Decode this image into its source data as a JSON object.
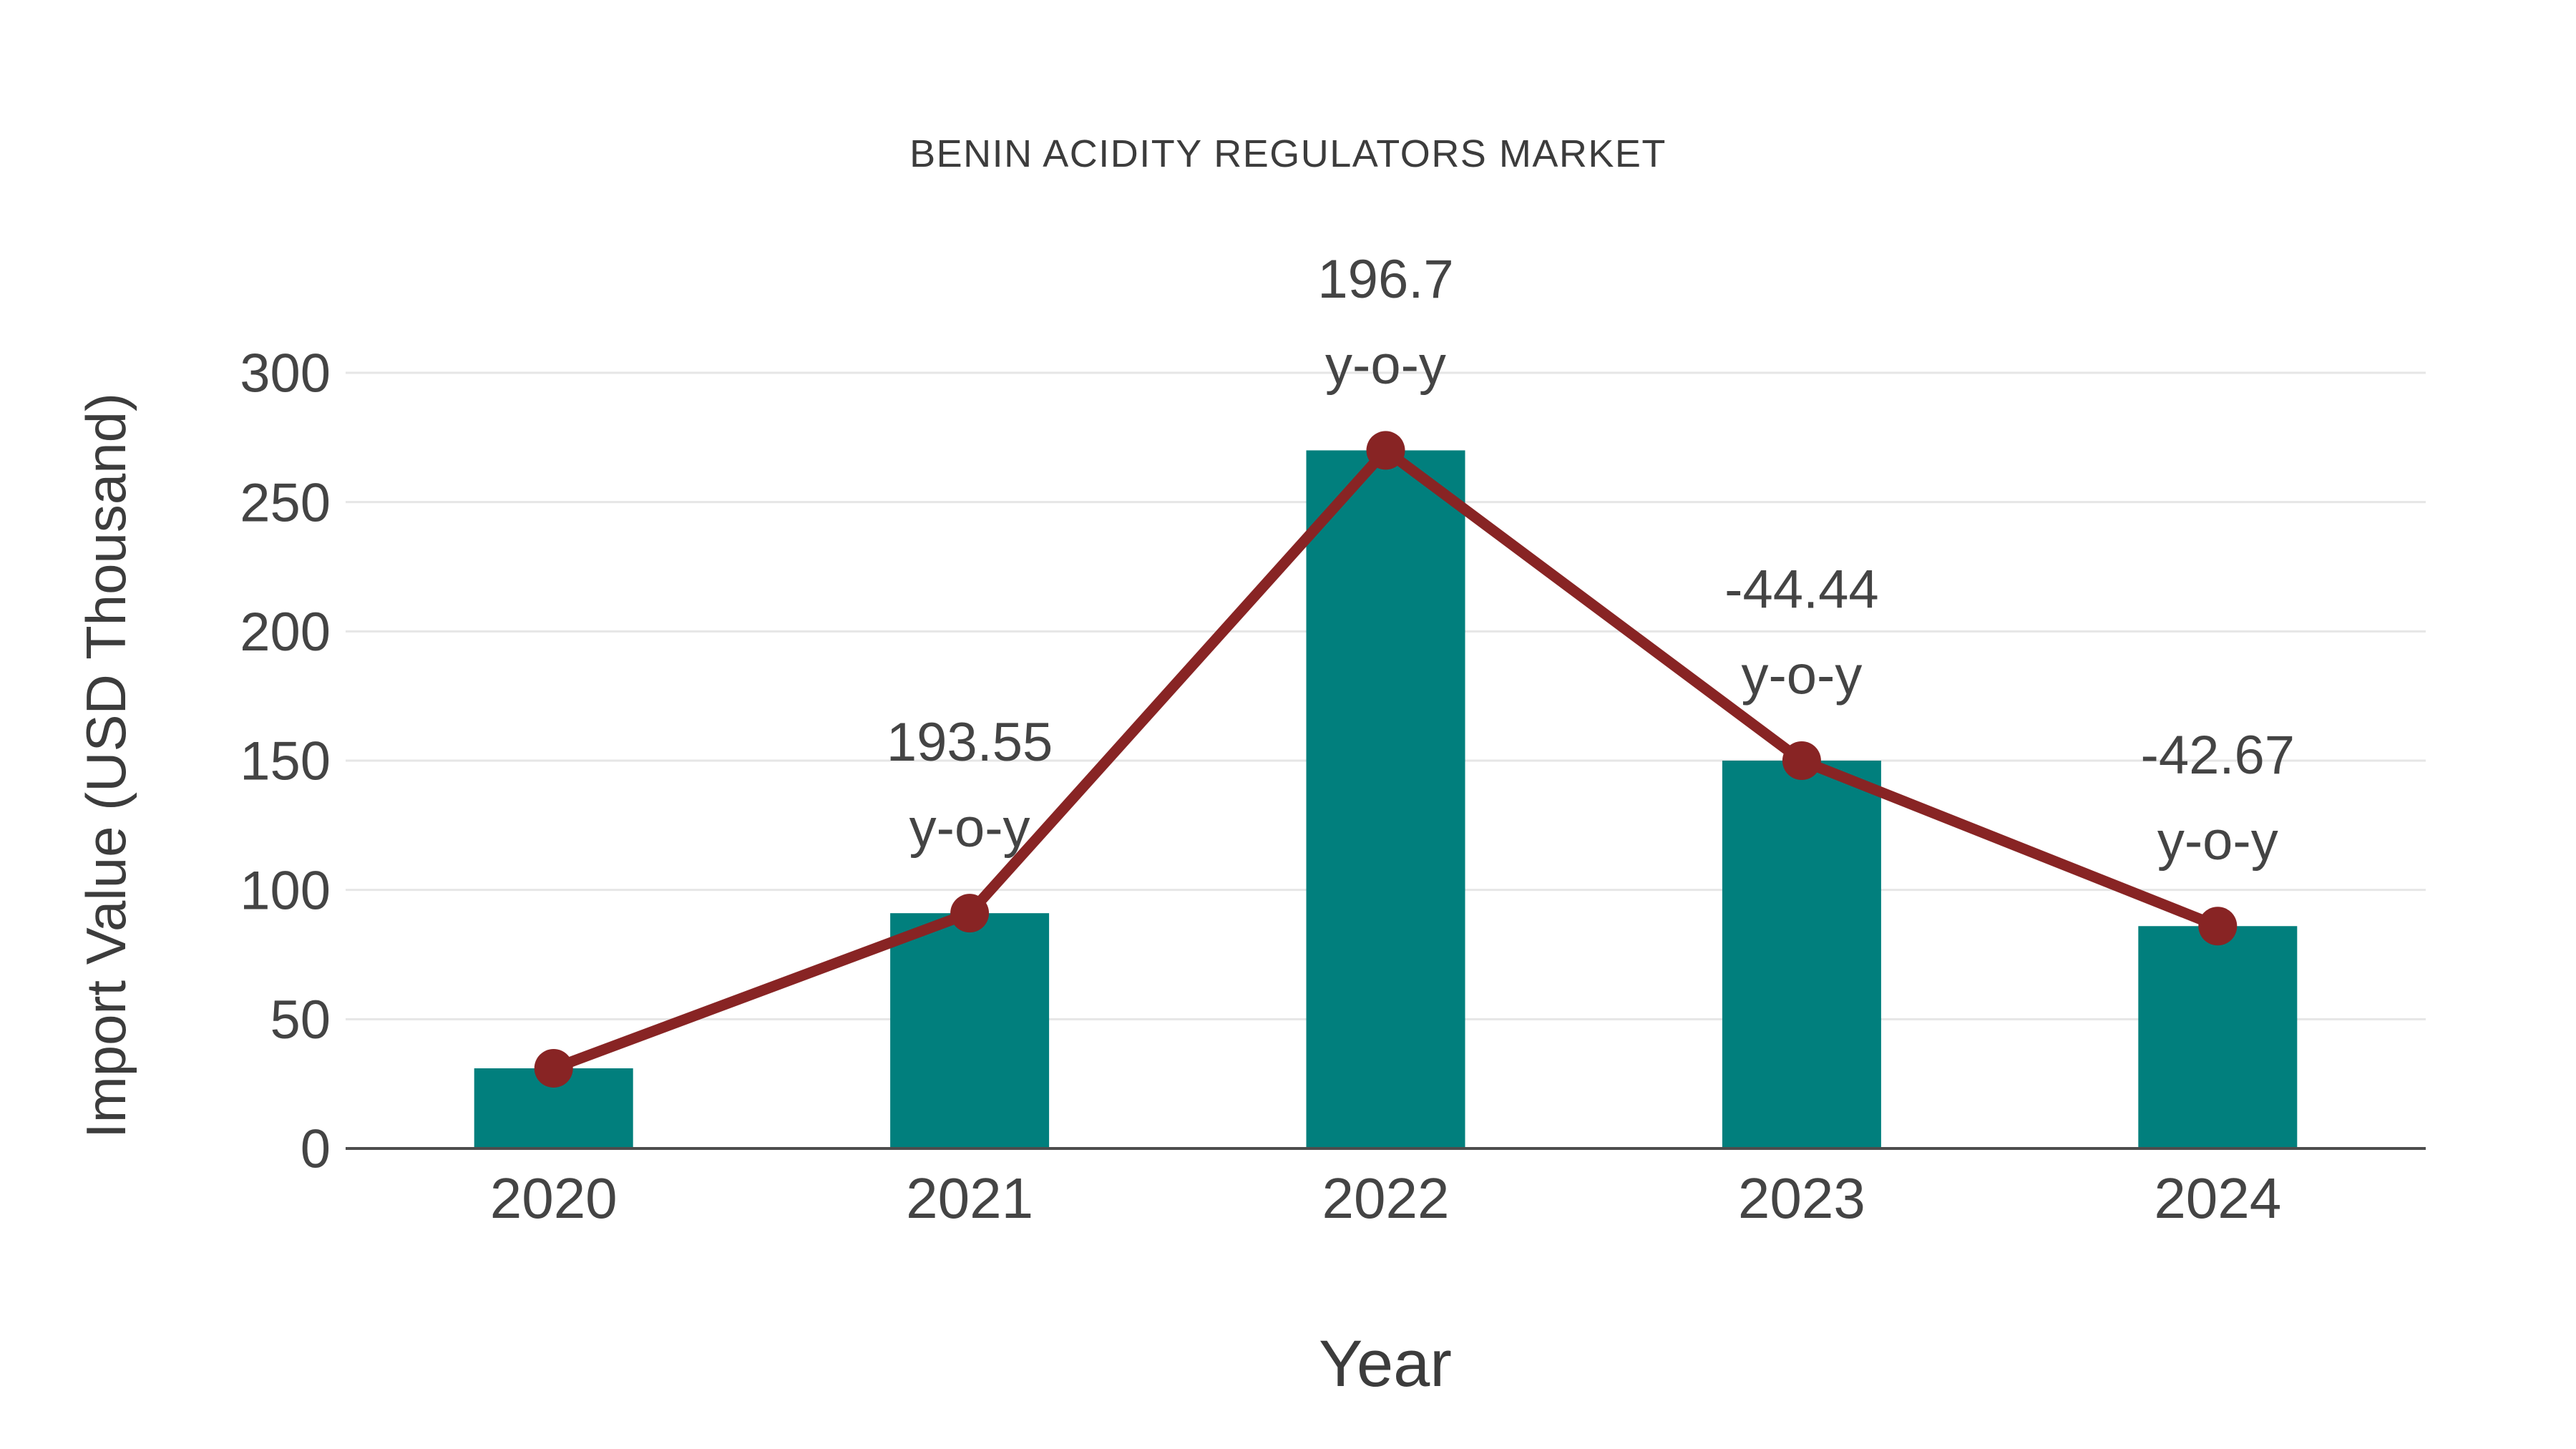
{
  "title": "BENIN ACIDITY REGULATORS MARKET",
  "chart_data": {
    "type": "bar+line",
    "title": "BENIN ACIDITY REGULATORS MARKET",
    "categories": [
      "2020",
      "2021",
      "2022",
      "2023",
      "2024"
    ],
    "series": [
      {
        "name": "Import Value",
        "type": "bar",
        "values": [
          31,
          91,
          270,
          150,
          86
        ],
        "color": "#017f7d"
      },
      {
        "name": "y-o-y change line",
        "type": "line",
        "values": [
          31,
          91,
          270,
          150,
          86
        ],
        "yoy_percent": [
          null,
          193.55,
          196.7,
          -44.44,
          -42.67
        ],
        "color": "#882424",
        "marker": true
      }
    ],
    "annotations": [
      {
        "year": "2021",
        "line1": "193.55",
        "line2": "y-o-y"
      },
      {
        "year": "2022",
        "line1": "196.7",
        "line2": "y-o-y"
      },
      {
        "year": "2023",
        "line1": "-44.44",
        "line2": "y-o-y"
      },
      {
        "year": "2024",
        "line1": "-42.67",
        "line2": "y-o-y"
      }
    ],
    "xlabel": "Year",
    "ylabel": "Import Value (USD Thousand)",
    "ylim": [
      0,
      300
    ],
    "yticks": [
      0,
      50,
      100,
      150,
      200,
      250,
      300
    ],
    "grid": true,
    "legend_position": "none",
    "colors": {
      "bar": "#017f7d",
      "line": "#882424",
      "grid": "#e6e6e6",
      "axis": "#4d4d4d",
      "tick_text": "#444444",
      "title_text": "#3c3c3c"
    }
  }
}
